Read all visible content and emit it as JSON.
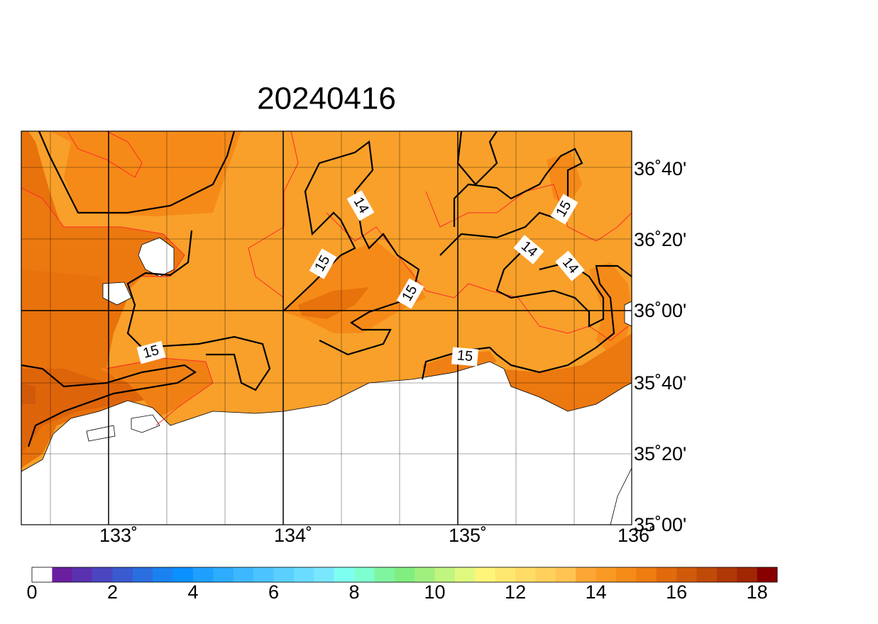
{
  "title": "20240416",
  "longitude_labels": [
    "133˚",
    "134˚",
    "135˚",
    "136˚"
  ],
  "latitude_labels": [
    "36˚40'",
    "36˚20'",
    "36˚00'",
    "35˚40'",
    "35˚20'",
    "35˚00'"
  ],
  "contour_labels": [
    14,
    15,
    15,
    15,
    15,
    14,
    14,
    15
  ],
  "colorbar": {
    "ticks": [
      0,
      2,
      4,
      6,
      8,
      10,
      12,
      14,
      16,
      18
    ],
    "colors": [
      "#ffffff",
      "#6a1fa0",
      "#5a32b0",
      "#4a46c0",
      "#3a5ad0",
      "#2a6ee0",
      "#1a82f0",
      "#0a90ff",
      "#1fa0ff",
      "#2eacff",
      "#3db8ff",
      "#4cc4ff",
      "#5bd0ff",
      "#6adcff",
      "#79e8ff",
      "#7fffef",
      "#7fffd0",
      "#7ff5a0",
      "#80ee80",
      "#a0f080",
      "#c0f580",
      "#e0fa80",
      "#fff57a",
      "#ffe870",
      "#ffdc66",
      "#ffd05c",
      "#ffc452",
      "#fca636",
      "#f99a24",
      "#f68c18",
      "#ee7c10",
      "#e06a0c",
      "#d05a0a",
      "#c04a08",
      "#b03806",
      "#a02604",
      "#880000"
    ]
  }
}
